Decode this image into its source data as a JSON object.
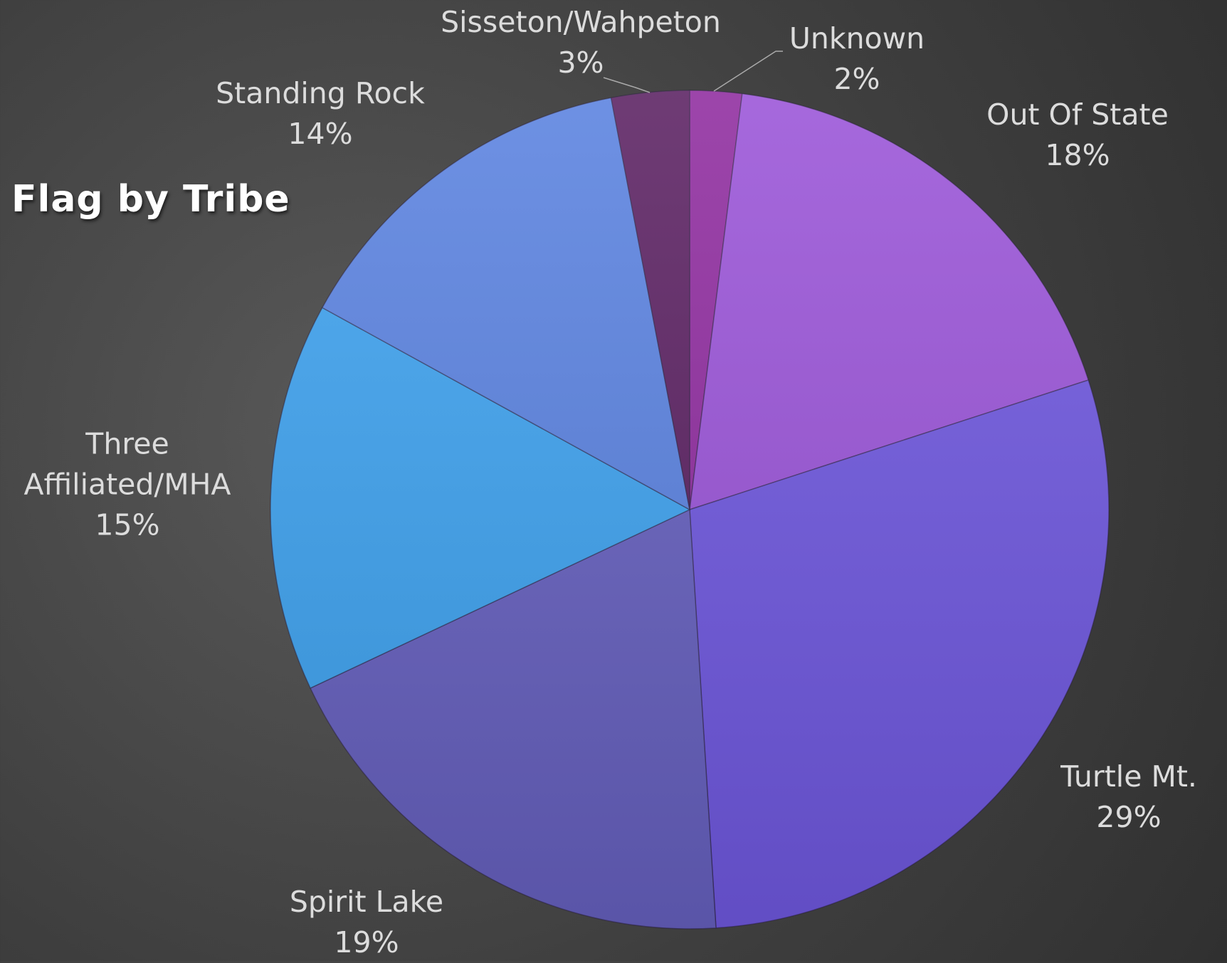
{
  "chart_data": {
    "type": "pie",
    "title": "Flag by Tribe",
    "categories": [
      "Unknown",
      "Out Of State",
      "Turtle Mt.",
      "Spirit Lake",
      "Three Affiliated/MHA",
      "Standing Rock",
      "Sisseton/Wahpeton"
    ],
    "values": [
      2,
      18,
      29,
      19,
      15,
      14,
      3
    ],
    "value_labels": [
      "2%",
      "18%",
      "29%",
      "19%",
      "15%",
      "14%",
      "3%"
    ],
    "colors": [
      "#8f2c9f",
      "#9a54d8",
      "#6f58df",
      "#6660bf",
      "#3ea2ef",
      "#5a82e0",
      "#5b2162"
    ]
  }
}
